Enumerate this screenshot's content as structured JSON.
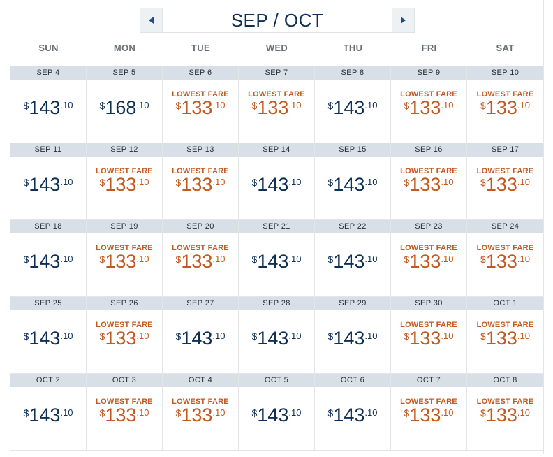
{
  "header": {
    "month_title": "SEP / OCT",
    "prev_icon": "left-triangle-icon",
    "next_icon": "right-triangle-icon"
  },
  "weekdays": [
    "SUN",
    "MON",
    "TUE",
    "WED",
    "THU",
    "FRI",
    "SAT"
  ],
  "currency": "$",
  "lowest_label": "LOWEST FARE",
  "colors": {
    "regular_fare": "#0f2f55",
    "lowest_fare": "#c15a22",
    "date_bar": "#d8dfe6"
  },
  "days": [
    {
      "date": "SEP 4",
      "dollars": "143",
      "cents": ".10",
      "lowest": false
    },
    {
      "date": "SEP 5",
      "dollars": "168",
      "cents": ".10",
      "lowest": false
    },
    {
      "date": "SEP 6",
      "dollars": "133",
      "cents": ".10",
      "lowest": true
    },
    {
      "date": "SEP 7",
      "dollars": "133",
      "cents": ".10",
      "lowest": true
    },
    {
      "date": "SEP 8",
      "dollars": "143",
      "cents": ".10",
      "lowest": false
    },
    {
      "date": "SEP 9",
      "dollars": "133",
      "cents": ".10",
      "lowest": true
    },
    {
      "date": "SEP 10",
      "dollars": "133",
      "cents": ".10",
      "lowest": true
    },
    {
      "date": "SEP 11",
      "dollars": "143",
      "cents": ".10",
      "lowest": false
    },
    {
      "date": "SEP 12",
      "dollars": "133",
      "cents": ".10",
      "lowest": true
    },
    {
      "date": "SEP 13",
      "dollars": "133",
      "cents": ".10",
      "lowest": true
    },
    {
      "date": "SEP 14",
      "dollars": "143",
      "cents": ".10",
      "lowest": false
    },
    {
      "date": "SEP 15",
      "dollars": "143",
      "cents": ".10",
      "lowest": false
    },
    {
      "date": "SEP 16",
      "dollars": "133",
      "cents": ".10",
      "lowest": true
    },
    {
      "date": "SEP 17",
      "dollars": "133",
      "cents": ".10",
      "lowest": true
    },
    {
      "date": "SEP 18",
      "dollars": "143",
      "cents": ".10",
      "lowest": false
    },
    {
      "date": "SEP 19",
      "dollars": "133",
      "cents": ".10",
      "lowest": true
    },
    {
      "date": "SEP 20",
      "dollars": "133",
      "cents": ".10",
      "lowest": true
    },
    {
      "date": "SEP 21",
      "dollars": "143",
      "cents": ".10",
      "lowest": false
    },
    {
      "date": "SEP 22",
      "dollars": "143",
      "cents": ".10",
      "lowest": false
    },
    {
      "date": "SEP 23",
      "dollars": "133",
      "cents": ".10",
      "lowest": true
    },
    {
      "date": "SEP 24",
      "dollars": "133",
      "cents": ".10",
      "lowest": true
    },
    {
      "date": "SEP 25",
      "dollars": "143",
      "cents": ".10",
      "lowest": false
    },
    {
      "date": "SEP 26",
      "dollars": "133",
      "cents": ".10",
      "lowest": true
    },
    {
      "date": "SEP 27",
      "dollars": "143",
      "cents": ".10",
      "lowest": false
    },
    {
      "date": "SEP 28",
      "dollars": "143",
      "cents": ".10",
      "lowest": false
    },
    {
      "date": "SEP 29",
      "dollars": "143",
      "cents": ".10",
      "lowest": false
    },
    {
      "date": "SEP 30",
      "dollars": "133",
      "cents": ".10",
      "lowest": true
    },
    {
      "date": "OCT 1",
      "dollars": "133",
      "cents": ".10",
      "lowest": true
    },
    {
      "date": "OCT 2",
      "dollars": "143",
      "cents": ".10",
      "lowest": false
    },
    {
      "date": "OCT 3",
      "dollars": "133",
      "cents": ".10",
      "lowest": true
    },
    {
      "date": "OCT 4",
      "dollars": "133",
      "cents": ".10",
      "lowest": true
    },
    {
      "date": "OCT 5",
      "dollars": "143",
      "cents": ".10",
      "lowest": false
    },
    {
      "date": "OCT 6",
      "dollars": "143",
      "cents": ".10",
      "lowest": false
    },
    {
      "date": "OCT 7",
      "dollars": "133",
      "cents": ".10",
      "lowest": true
    },
    {
      "date": "OCT 8",
      "dollars": "133",
      "cents": ".10",
      "lowest": true
    }
  ]
}
